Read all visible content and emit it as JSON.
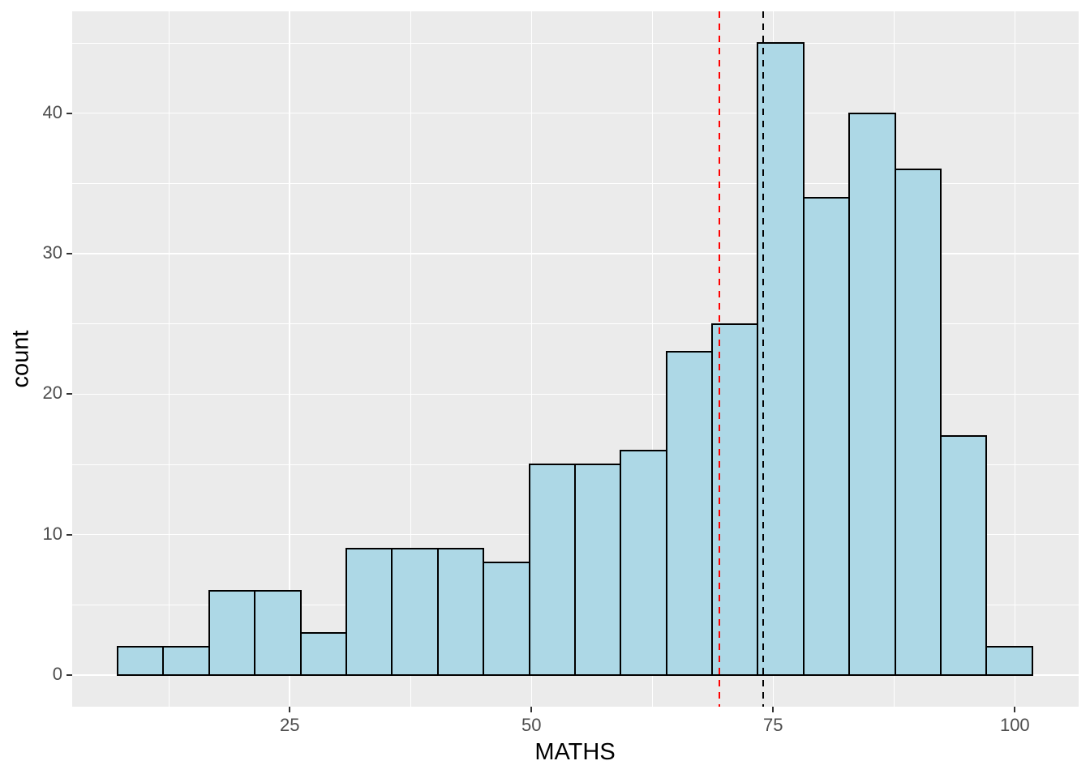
{
  "chart_data": {
    "type": "bar",
    "subtype": "histogram",
    "xlabel": "MATHS",
    "ylabel": "count",
    "bin_start": 7.2,
    "bin_width": 4.73,
    "counts": [
      2,
      2,
      6,
      6,
      3,
      9,
      9,
      9,
      8,
      15,
      15,
      16,
      23,
      25,
      45,
      34,
      40,
      36,
      17,
      2
    ],
    "x_ticks": [
      25,
      50,
      75,
      100
    ],
    "y_ticks": [
      0,
      10,
      20,
      30,
      40
    ],
    "x_minor": [
      12.5,
      37.5,
      62.5,
      87.5
    ],
    "y_minor": [
      5,
      15,
      25,
      35,
      45
    ],
    "xlim": [
      2.5,
      106.6
    ],
    "ylim": [
      -2.25,
      47.25
    ],
    "grid": "on",
    "legend": "none",
    "vlines": [
      {
        "value": 69.4,
        "color": "#FF0000",
        "linetype": "dashed"
      },
      {
        "value": 74.0,
        "color": "#000000",
        "linetype": "dashed"
      }
    ]
  },
  "colors": {
    "bar_fill": "#ADD8E6",
    "bar_stroke": "#000000",
    "panel_bg": "#EBEBEB",
    "grid_line": "#FFFFFF",
    "tick_mark": "#333333",
    "tick_label": "#4D4D4D",
    "axis_title": "#000000",
    "figure_bg": "#FFFFFF"
  }
}
